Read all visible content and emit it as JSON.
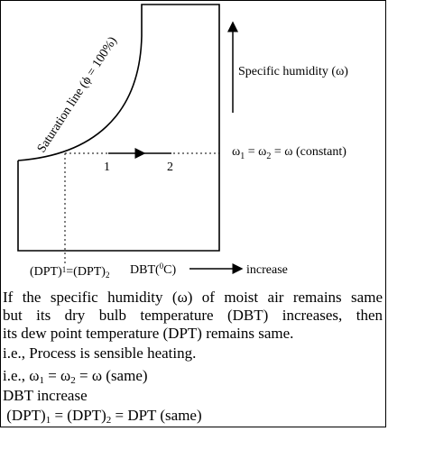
{
  "diagram": {
    "saturation_label": "Saturation line (ϕ = 100%)",
    "point_1": "1",
    "point_2": "2",
    "specific_humidity_label": "Specific humidity (ω)",
    "omega_equation": [
      "ω",
      "1",
      " = ω",
      "2",
      " = ω (constant)"
    ],
    "dpt_label": [
      "(DPT)",
      "1",
      "=(DPT)",
      "2"
    ],
    "dbt_label": [
      "DBT(",
      "0",
      "C)"
    ],
    "increase_label": "increase"
  },
  "text": {
    "paragraph": [
      "If the specific humidity (ω) of moist air remains same",
      "but its dry bulb temperature (DBT) increases, then",
      "its dew point temperature (DPT) remains same."
    ],
    "process_line": "i.e., Process is sensible heating.",
    "omega_line": [
      "i.e., ω",
      "1",
      " = ω",
      "2",
      " = ω (same)"
    ],
    "dbt_line": "DBT increase",
    "dpt_line": [
      " (DPT)",
      "1",
      " = (DPT)",
      "2",
      " = DPT (same)"
    ]
  }
}
